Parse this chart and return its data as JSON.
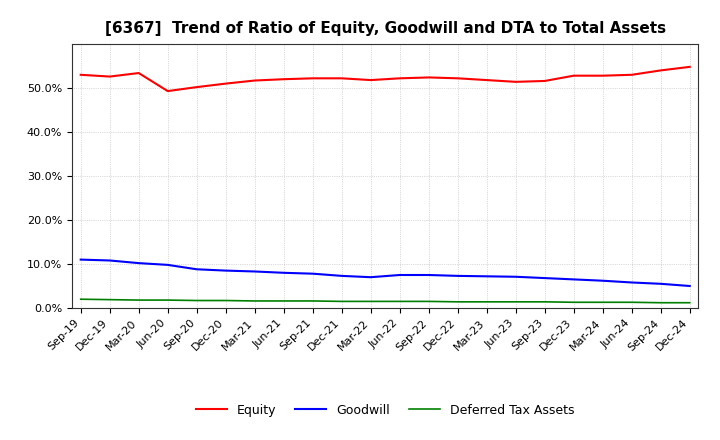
{
  "title": "[6367]  Trend of Ratio of Equity, Goodwill and DTA to Total Assets",
  "labels": [
    "Sep-19",
    "Dec-19",
    "Mar-20",
    "Jun-20",
    "Sep-20",
    "Dec-20",
    "Mar-21",
    "Jun-21",
    "Sep-21",
    "Dec-21",
    "Mar-22",
    "Jun-22",
    "Sep-22",
    "Dec-22",
    "Mar-23",
    "Jun-23",
    "Sep-23",
    "Dec-23",
    "Mar-24",
    "Jun-24",
    "Sep-24",
    "Dec-24"
  ],
  "equity": [
    0.53,
    0.526,
    0.534,
    0.493,
    0.502,
    0.51,
    0.517,
    0.52,
    0.522,
    0.522,
    0.518,
    0.522,
    0.524,
    0.522,
    0.518,
    0.514,
    0.516,
    0.528,
    0.528,
    0.53,
    0.54,
    0.548
  ],
  "goodwill": [
    0.11,
    0.108,
    0.102,
    0.098,
    0.088,
    0.085,
    0.083,
    0.08,
    0.078,
    0.073,
    0.07,
    0.075,
    0.075,
    0.073,
    0.072,
    0.071,
    0.068,
    0.065,
    0.062,
    0.058,
    0.055,
    0.05
  ],
  "dta": [
    0.02,
    0.019,
    0.018,
    0.018,
    0.017,
    0.017,
    0.016,
    0.016,
    0.016,
    0.015,
    0.015,
    0.015,
    0.015,
    0.014,
    0.014,
    0.014,
    0.014,
    0.013,
    0.013,
    0.013,
    0.012,
    0.012
  ],
  "equity_color": "#FF0000",
  "goodwill_color": "#0000FF",
  "dta_color": "#008000",
  "background_color": "#FFFFFF",
  "grid_color": "#999999",
  "ylim": [
    0.0,
    0.6
  ],
  "yticks": [
    0.0,
    0.1,
    0.2,
    0.3,
    0.4,
    0.5
  ],
  "legend_labels": [
    "Equity",
    "Goodwill",
    "Deferred Tax Assets"
  ],
  "title_fontsize": 11,
  "tick_fontsize": 8,
  "legend_fontsize": 9
}
